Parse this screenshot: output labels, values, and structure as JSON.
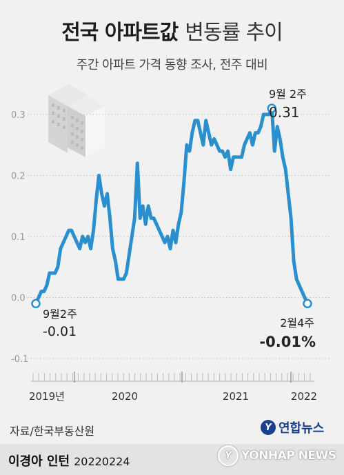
{
  "header": {
    "title_bold": "전국 아파트값",
    "title_light": "변동률 추이",
    "subtitle": "주간 아파트 가격 동향 조사, 전주 대비"
  },
  "footer": {
    "source": "자료/한국부동산원",
    "author": "이경아 인턴",
    "date": "20220224",
    "logo_text": "연합뉴스",
    "watermark": "YONHAP NEWS"
  },
  "colors": {
    "line": "#2a8fcf",
    "background": "#f1f1f1",
    "grid": "#bdbdbd"
  },
  "chart_data": {
    "type": "line",
    "title": "",
    "xlabel": "",
    "ylabel": "",
    "ylim": [
      -0.1,
      0.3
    ],
    "y_ticks": [
      "0.3",
      "0.2",
      "0.1",
      "0.0",
      "-0.1"
    ],
    "x_tick_labels": [
      "2019년",
      "2020",
      "2021",
      "2022"
    ],
    "grid": "horizontal dotted",
    "series": [
      {
        "values": [
          -0.01,
          0.0,
          0.01,
          0.01,
          0.02,
          0.04,
          0.04,
          0.04,
          0.05,
          0.08,
          0.09,
          0.1,
          0.11,
          0.11,
          0.1,
          0.09,
          0.08,
          0.1,
          0.09,
          0.1,
          0.08,
          0.11,
          0.16,
          0.2,
          0.17,
          0.15,
          0.17,
          0.13,
          0.08,
          0.06,
          0.03,
          0.03,
          0.03,
          0.04,
          0.07,
          0.1,
          0.13,
          0.22,
          0.13,
          0.15,
          0.12,
          0.15,
          0.13,
          0.13,
          0.12,
          0.11,
          0.1,
          0.09,
          0.1,
          0.08,
          0.11,
          0.09,
          0.12,
          0.14,
          0.19,
          0.25,
          0.24,
          0.27,
          0.29,
          0.29,
          0.27,
          0.25,
          0.29,
          0.27,
          0.25,
          0.26,
          0.25,
          0.24,
          0.24,
          0.23,
          0.24,
          0.21,
          0.23,
          0.23,
          0.23,
          0.23,
          0.25,
          0.26,
          0.27,
          0.25,
          0.27,
          0.27,
          0.28,
          0.3,
          0.3,
          0.3,
          0.31,
          0.24,
          0.28,
          0.26,
          0.23,
          0.21,
          0.17,
          0.13,
          0.06,
          0.03,
          0.02,
          0.01,
          0.0,
          -0.01
        ]
      }
    ],
    "annotations": [
      {
        "date": "9월2주",
        "value": "-0.01"
      },
      {
        "date": "9월 2주",
        "value": "0.31"
      },
      {
        "date": "2월4주",
        "value": "-0.01%"
      }
    ]
  }
}
